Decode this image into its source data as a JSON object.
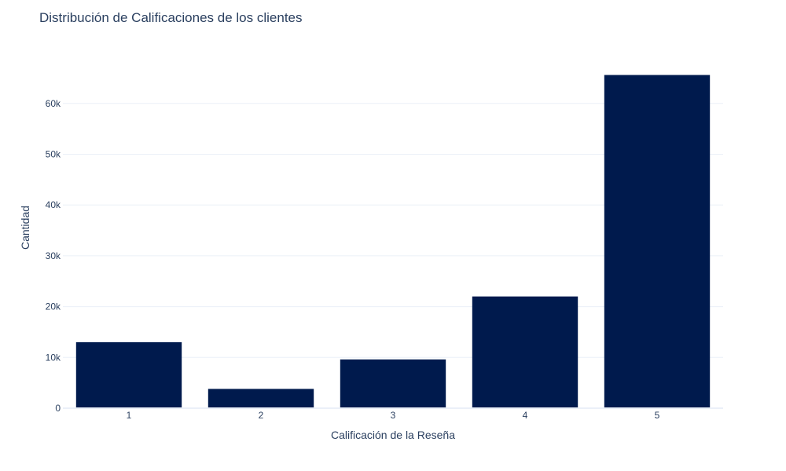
{
  "chart_data": {
    "type": "bar",
    "title": "Distribución de Calificaciones de los clientes",
    "xlabel": "Calificación de la Reseña",
    "ylabel": "Cantidad",
    "categories": [
      "1",
      "2",
      "3",
      "4",
      "5"
    ],
    "values": [
      13000,
      3800,
      9600,
      22000,
      65600
    ],
    "ylim": [
      0,
      68000
    ],
    "yticks": [
      0,
      10000,
      20000,
      30000,
      40000,
      50000,
      60000
    ],
    "ytick_labels": [
      "0",
      "10k",
      "20k",
      "30k",
      "40k",
      "50k",
      "60k"
    ],
    "grid": true,
    "legend": "none",
    "bar_color": "#001a4d",
    "grid_color": "#ebf0f8",
    "text_color": "#2a3f5f"
  }
}
